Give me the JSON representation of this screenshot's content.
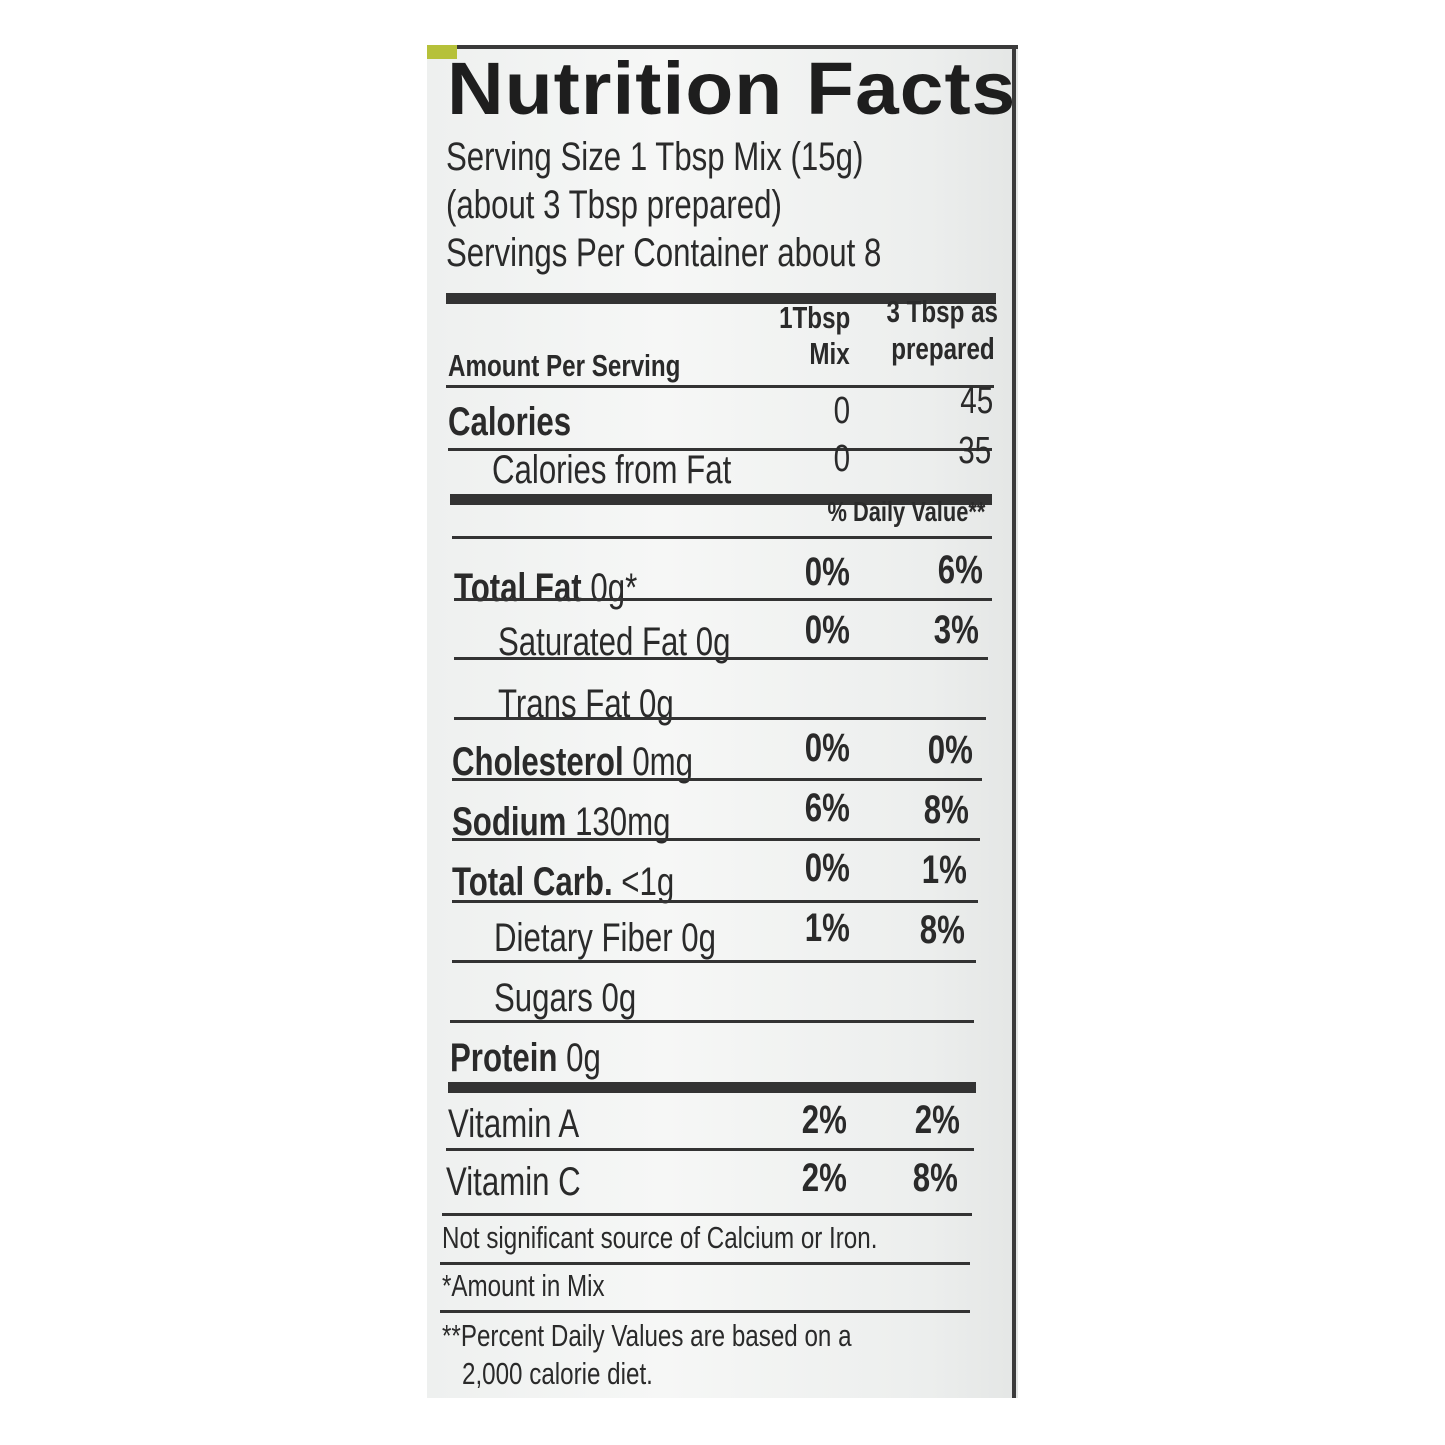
{
  "label": {
    "title": "Nutrition Facts",
    "serving_size": "Serving Size 1 Tbsp Mix (15g)",
    "serving_prepared": "(about 3 Tbsp prepared)",
    "servings_per_container": "Servings Per Container about 8",
    "col_mix_line1": "1Tbsp",
    "col_mix_line2": "Mix",
    "col_prep_line1": "3 Tbsp as",
    "col_prep_line2": "prepared",
    "amount_per_serving": "Amount Per Serving",
    "calories": {
      "label": "Calories",
      "mix": "0",
      "prepared": "45"
    },
    "calories_from_fat": {
      "label": "Calories from Fat",
      "mix": "0",
      "prepared": "35"
    },
    "daily_value_header": "% Daily Value**",
    "nutrients": [
      {
        "name": "Total Fat",
        "amount": "0g*",
        "mix": "0%",
        "prepared": "6%"
      },
      {
        "name": "Saturated Fat",
        "amount": "0g",
        "mix": "0%",
        "prepared": "3%"
      },
      {
        "name": "Trans Fat",
        "amount": "0g",
        "mix": "",
        "prepared": ""
      },
      {
        "name": "Cholesterol",
        "amount": "0mg",
        "mix": "0%",
        "prepared": "0%"
      },
      {
        "name": "Sodium",
        "amount": "130mg",
        "mix": "6%",
        "prepared": "8%"
      },
      {
        "name": "Total Carb.",
        "amount": "<1g",
        "mix": "0%",
        "prepared": "1%"
      },
      {
        "name": "Dietary Fiber",
        "amount": "0g",
        "mix": "1%",
        "prepared": "8%"
      },
      {
        "name": "Sugars",
        "amount": "0g",
        "mix": "",
        "prepared": ""
      },
      {
        "name": "Protein",
        "amount": "0g",
        "mix": "",
        "prepared": ""
      }
    ],
    "vitamins": [
      {
        "name": "Vitamin A",
        "mix": "2%",
        "prepared": "2%"
      },
      {
        "name": "Vitamin C",
        "mix": "2%",
        "prepared": "8%"
      }
    ],
    "footnote_calcium": "Not significant source of Calcium or Iron.",
    "footnote_amount": "*Amount in Mix",
    "footnote_dv_line1": "**Percent Daily Values are based on a",
    "footnote_dv_line2": "2,000 calorie diet."
  },
  "colors": {
    "package_accent": "#b6c13a",
    "ink": "#2a2a2a"
  }
}
